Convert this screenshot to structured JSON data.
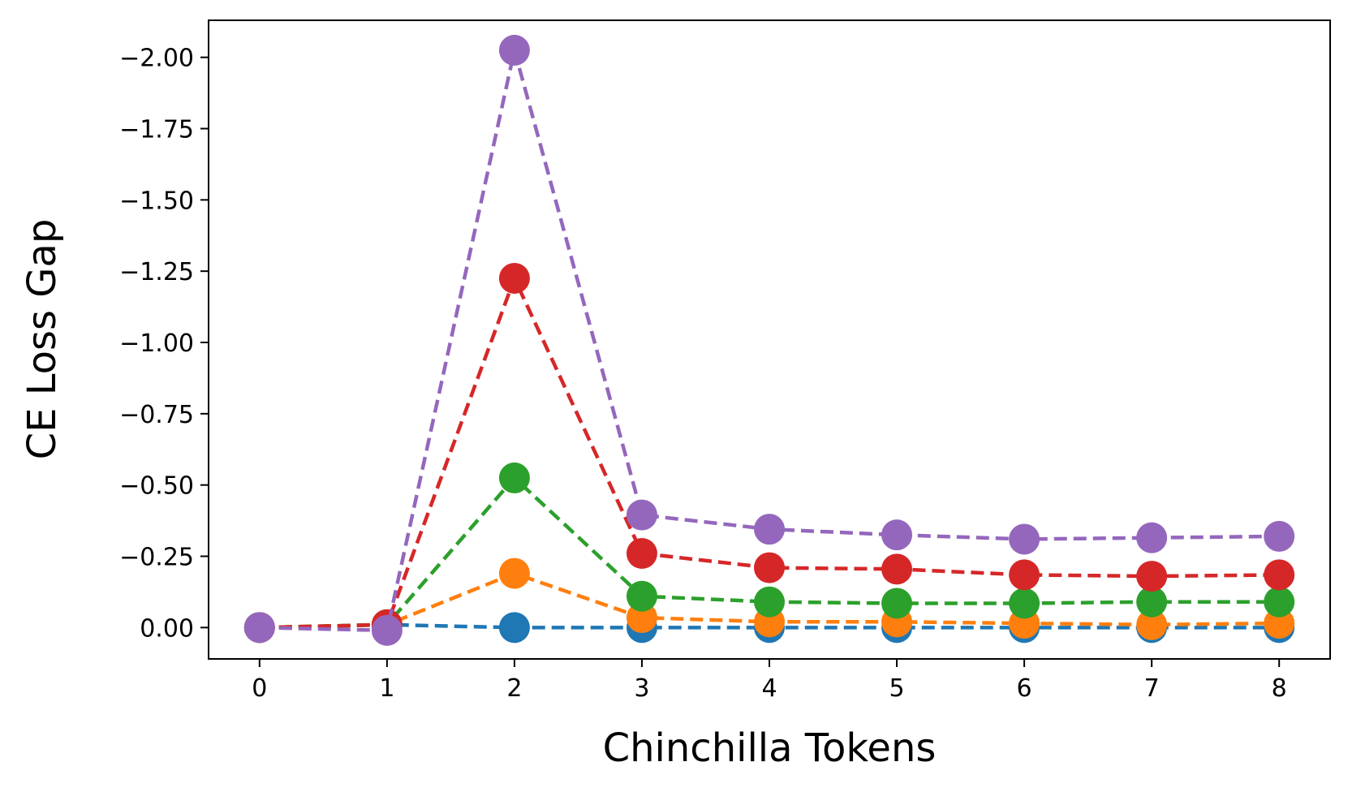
{
  "chart_data": {
    "type": "line",
    "xlabel": "Chinchilla Tokens",
    "ylabel": "CE Loss Gap",
    "x": [
      0,
      1,
      2,
      3,
      4,
      5,
      6,
      7,
      8
    ],
    "xticks": [
      "0",
      "1",
      "2",
      "3",
      "4",
      "5",
      "6",
      "7",
      "8"
    ],
    "yticks": [
      "0.00",
      "−0.25",
      "−0.50",
      "−0.75",
      "−1.00",
      "−1.25",
      "−1.50",
      "−1.75",
      "−2.00"
    ],
    "ytick_values": [
      0,
      -0.25,
      -0.5,
      -0.75,
      -1.0,
      -1.25,
      -1.5,
      -1.75,
      -2.0
    ],
    "xlim": [
      -0.4,
      8.4
    ],
    "ylim": [
      0.11,
      -2.13
    ],
    "y_inverted": true,
    "grid": false,
    "legend": "none",
    "line_style": "dashed",
    "marker": "circle",
    "series": [
      {
        "color": "#1f77b4",
        "values": [
          0,
          -0.01,
          0,
          0,
          0,
          0,
          0,
          0,
          0
        ]
      },
      {
        "color": "#ff7f0e",
        "values": [
          0,
          -0.01,
          -0.19,
          -0.035,
          -0.02,
          -0.02,
          -0.015,
          -0.01,
          -0.015
        ]
      },
      {
        "color": "#2ca02c",
        "values": [
          0,
          -0.01,
          -0.525,
          -0.11,
          -0.09,
          -0.085,
          -0.085,
          -0.09,
          -0.09
        ]
      },
      {
        "color": "#d62728",
        "values": [
          0,
          -0.01,
          -1.225,
          -0.26,
          -0.21,
          -0.205,
          -0.185,
          -0.18,
          -0.185
        ]
      },
      {
        "color": "#9467bd",
        "values": [
          0,
          0.01,
          -2.025,
          -0.395,
          -0.345,
          -0.325,
          -0.31,
          -0.315,
          -0.32
        ]
      }
    ]
  }
}
